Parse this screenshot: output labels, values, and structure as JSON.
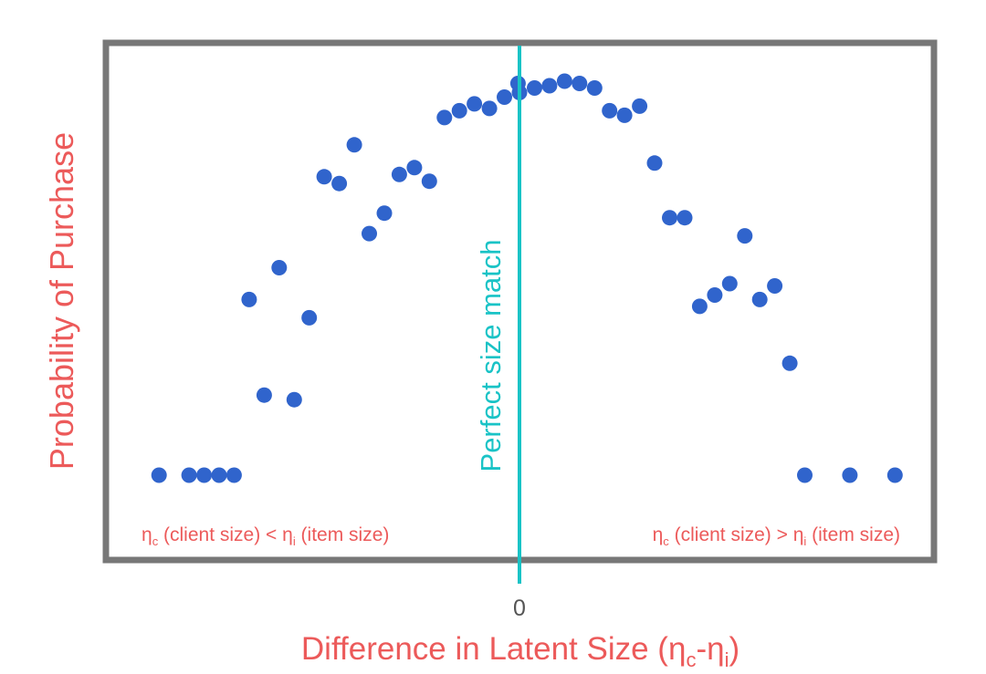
{
  "chart_data": {
    "type": "scatter",
    "title": "",
    "ylabel": "Probability of Purchase",
    "xlabel_main": "Difference in Latent Size (η",
    "xlabel_sub_c": "c",
    "xlabel_dash": "-η",
    "xlabel_sub_i": "i",
    "xlabel_close": ")",
    "x_ticks": [
      {
        "value": 0,
        "label": "0"
      }
    ],
    "xlim": [
      -25,
      25
    ],
    "ylim": [
      0,
      100
    ],
    "grid": false,
    "vertical_line": {
      "x": 0,
      "label": "Perfect size match",
      "color": "#19c3c6"
    },
    "annotation_left": {
      "eta": "η",
      "sub_c": "c",
      "mid": " (client size) < η",
      "sub_i": "i",
      "end": " (item size)"
    },
    "annotation_right": {
      "eta": "η",
      "sub_c": "c",
      "mid": " (client size) > η",
      "sub_i": "i",
      "end": " (item size)"
    },
    "point_color": "#3064cc",
    "frame_color": "#777777",
    "label_color": "#ec5a5a",
    "points": [
      {
        "x": -24,
        "y": 14.4
      },
      {
        "x": -22,
        "y": 14.4
      },
      {
        "x": -21,
        "y": 14.4
      },
      {
        "x": -20,
        "y": 14.4
      },
      {
        "x": -19,
        "y": 14.4
      },
      {
        "x": -18,
        "y": 53
      },
      {
        "x": -17,
        "y": 32
      },
      {
        "x": -16,
        "y": 60
      },
      {
        "x": -15,
        "y": 31
      },
      {
        "x": -14,
        "y": 49
      },
      {
        "x": -13,
        "y": 80
      },
      {
        "x": -12,
        "y": 78.5
      },
      {
        "x": -11,
        "y": 87
      },
      {
        "x": -10,
        "y": 67.5
      },
      {
        "x": -9,
        "y": 72
      },
      {
        "x": -8,
        "y": 80.5
      },
      {
        "x": -7,
        "y": 82
      },
      {
        "x": -6,
        "y": 79
      },
      {
        "x": -5,
        "y": 93
      },
      {
        "x": -4,
        "y": 94.5
      },
      {
        "x": -3,
        "y": 96
      },
      {
        "x": -2,
        "y": 95
      },
      {
        "x": -1,
        "y": 97.5
      },
      {
        "x": -0.1,
        "y": 100.5
      },
      {
        "x": 0,
        "y": 98.5
      },
      {
        "x": 1,
        "y": 99.5
      },
      {
        "x": 2,
        "y": 100
      },
      {
        "x": 3,
        "y": 101
      },
      {
        "x": 4,
        "y": 100.5
      },
      {
        "x": 5,
        "y": 99.5
      },
      {
        "x": 6,
        "y": 94.5
      },
      {
        "x": 7,
        "y": 93.5
      },
      {
        "x": 8,
        "y": 95.5
      },
      {
        "x": 9,
        "y": 83
      },
      {
        "x": 10,
        "y": 71
      },
      {
        "x": 11,
        "y": 71
      },
      {
        "x": 12,
        "y": 51.5
      },
      {
        "x": 13,
        "y": 54
      },
      {
        "x": 14,
        "y": 56.5
      },
      {
        "x": 15,
        "y": 67
      },
      {
        "x": 16,
        "y": 53
      },
      {
        "x": 17,
        "y": 56
      },
      {
        "x": 18,
        "y": 39
      },
      {
        "x": 19,
        "y": 14.4
      },
      {
        "x": 22,
        "y": 14.4
      },
      {
        "x": 25,
        "y": 14.4
      }
    ]
  }
}
